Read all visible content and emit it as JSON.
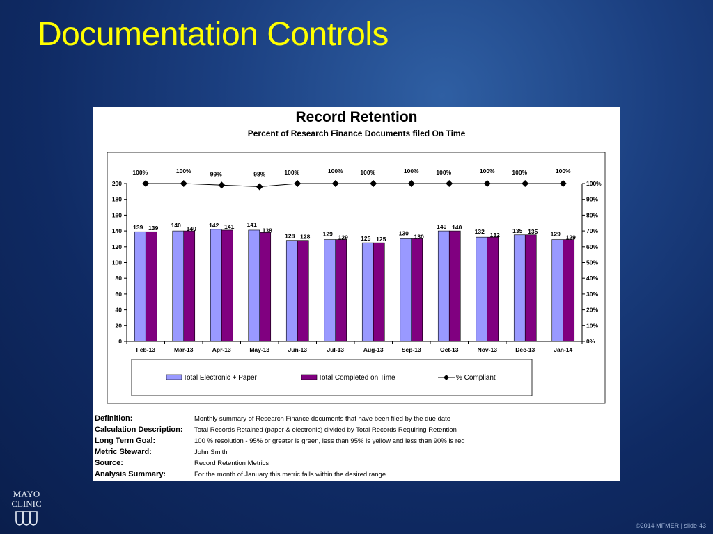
{
  "slide": {
    "title": "Documentation Controls",
    "footer": "©2014 MFMER  |  slide-43",
    "logo": {
      "line1": "MAYO",
      "line2": "CLINIC",
      "icon": "mayo-shield-icon"
    }
  },
  "chart_data": {
    "type": "bar",
    "title": "Record Retention",
    "subtitle": "Percent of Research Finance Documents filed On Time",
    "categories": [
      "Feb-13",
      "Mar-13",
      "Apr-13",
      "May-13",
      "Jun-13",
      "Jul-13",
      "Aug-13",
      "Sep-13",
      "Oct-13",
      "Nov-13",
      "Dec-13",
      "Jan-14"
    ],
    "series": [
      {
        "name": "Total Electronic + Paper",
        "type": "bar",
        "color": "#9999ff",
        "values": [
          139,
          140,
          142,
          141,
          128,
          129,
          125,
          130,
          140,
          132,
          135,
          129
        ]
      },
      {
        "name": "Total Completed on Time",
        "type": "bar",
        "color": "#800080",
        "values": [
          139,
          140,
          141,
          138,
          128,
          129,
          125,
          130,
          140,
          132,
          135,
          129
        ]
      },
      {
        "name": "% Compliant",
        "type": "line",
        "axis": "right",
        "marker": "diamond",
        "color": "#000000",
        "values": [
          100,
          100,
          99,
          98,
          100,
          100,
          100,
          100,
          100,
          100,
          100,
          100
        ],
        "labels": [
          "100%",
          "100%",
          "99%",
          "98%",
          "100%",
          "100%",
          "100%",
          "100%",
          "100%",
          "100%",
          "100%",
          "100%"
        ]
      }
    ],
    "y_left": {
      "min": 0,
      "max": 200,
      "ticks": [
        "0",
        "20",
        "40",
        "60",
        "80",
        "100",
        "120",
        "140",
        "160",
        "180",
        "200"
      ]
    },
    "y_right": {
      "min": 0,
      "max": 100,
      "ticks": [
        "0%",
        "10%",
        "20%",
        "30%",
        "40%",
        "50%",
        "60%",
        "70%",
        "80%",
        "90%",
        "100%"
      ]
    },
    "grid": false,
    "legend_position": "bottom"
  },
  "definitions": [
    {
      "label": "Definition:",
      "value": "Monthly summary of Research Finance documents that have been filed by the due date"
    },
    {
      "label": "Calculation Description:",
      "value": "Total Records Retained (paper & electronic) divided by Total Records Requiring Retention"
    },
    {
      "label": "Long Term Goal:",
      "value": "100 % resolution - 95% or greater is green, less than 95% is yellow and less than 90% is red"
    },
    {
      "label": "Metric Steward:",
      "value": "John Smith"
    },
    {
      "label": "Source:",
      "value": "Record Retention Metrics"
    },
    {
      "label": "Analysis Summary:",
      "value": "For the month of January this metric falls within the desired range"
    }
  ]
}
